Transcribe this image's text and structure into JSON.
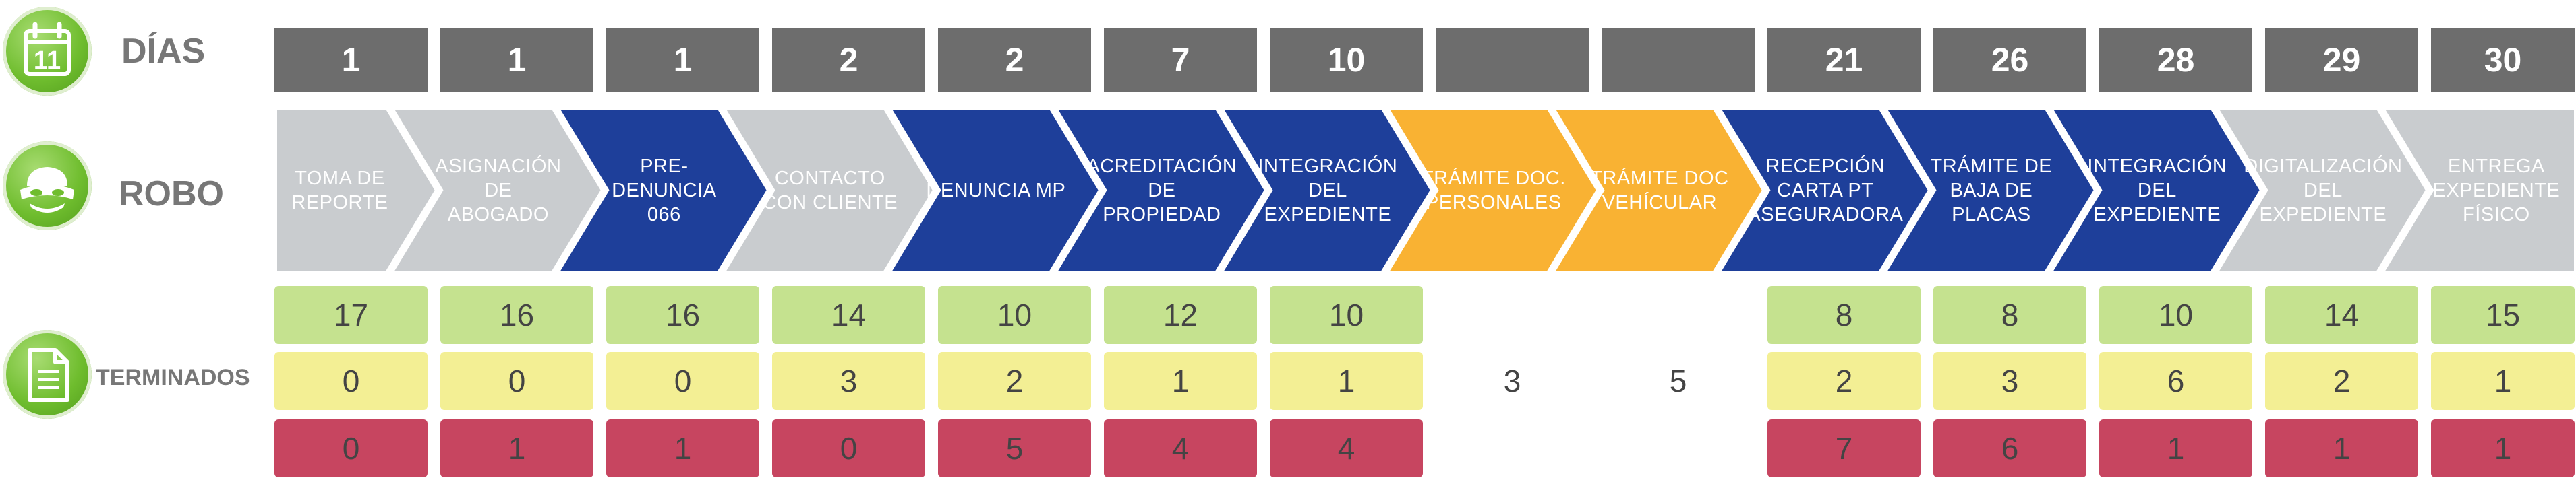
{
  "rows": {
    "days_label": "DÍAS",
    "process_label": "ROBO",
    "counts_label": "TERMINADOS"
  },
  "icons": {
    "days": "calendar-icon",
    "days_number": "11",
    "process": "bandit-mask-icon",
    "counts": "document-icon"
  },
  "colors": {
    "gray": "#c9cccf",
    "blue": "#1e3f9a",
    "orange": "#f9b233",
    "green": "#c5e28f",
    "yellow": "#f3ef94",
    "red": "#c74560",
    "day_box": "#6d6d6d"
  },
  "steps": [
    {
      "day": "1",
      "label": "TOMA DE\nREPORTE",
      "color": "gray",
      "terminados": [
        "17",
        "0",
        "0"
      ]
    },
    {
      "day": "1",
      "label": "ASIGNACIÓN\nDE\nABOGADO",
      "color": "gray",
      "terminados": [
        "16",
        "0",
        "1"
      ]
    },
    {
      "day": "1",
      "label": "PRE-DENUNCIA\n066",
      "color": "blue",
      "terminados": [
        "16",
        "0",
        "1"
      ]
    },
    {
      "day": "2",
      "label": "CONTACTO\nCON CLIENTE",
      "color": "gray",
      "terminados": [
        "14",
        "3",
        "0"
      ]
    },
    {
      "day": "2",
      "label": "DENUNCIA MP",
      "color": "blue",
      "terminados": [
        "10",
        "2",
        "5"
      ]
    },
    {
      "day": "7",
      "label": "ACREDITACIÓN\nDE PROPIEDAD",
      "color": "blue",
      "terminados": [
        "12",
        "1",
        "4"
      ]
    },
    {
      "day": "10",
      "label": "INTEGRACIÓN\nDEL\nEXPEDIENTE",
      "color": "blue",
      "terminados": [
        "10",
        "1",
        "4"
      ]
    },
    {
      "day": "",
      "label": "TRÁMITE DOC.\nPERSONALES",
      "color": "orange",
      "terminados": [
        "",
        "3",
        ""
      ]
    },
    {
      "day": "",
      "label": "TRÁMITE DOC\nVEHÍCULAR",
      "color": "orange",
      "terminados": [
        "",
        "5",
        ""
      ]
    },
    {
      "day": "21",
      "label": "RECEPCIÓN\nCARTA PT\nASEGURADORA",
      "color": "blue",
      "terminados": [
        "8",
        "2",
        "7"
      ]
    },
    {
      "day": "26",
      "label": "TRÁMITE DE\nBAJA DE\nPLACAS",
      "color": "blue",
      "terminados": [
        "8",
        "3",
        "6"
      ]
    },
    {
      "day": "28",
      "label": "INTEGRACIÓN\nDEL\nEXPEDIENTE",
      "color": "blue",
      "terminados": [
        "10",
        "6",
        "1"
      ]
    },
    {
      "day": "29",
      "label": "DIGITALIZACIÓN\nDEL\nEXPEDIENTE",
      "color": "gray",
      "terminados": [
        "14",
        "2",
        "1"
      ]
    },
    {
      "day": "30",
      "label": "ENTREGA\nEXPEDIENTE\nFÍSICO",
      "color": "gray",
      "terminados": [
        "15",
        "1",
        "1"
      ]
    }
  ]
}
